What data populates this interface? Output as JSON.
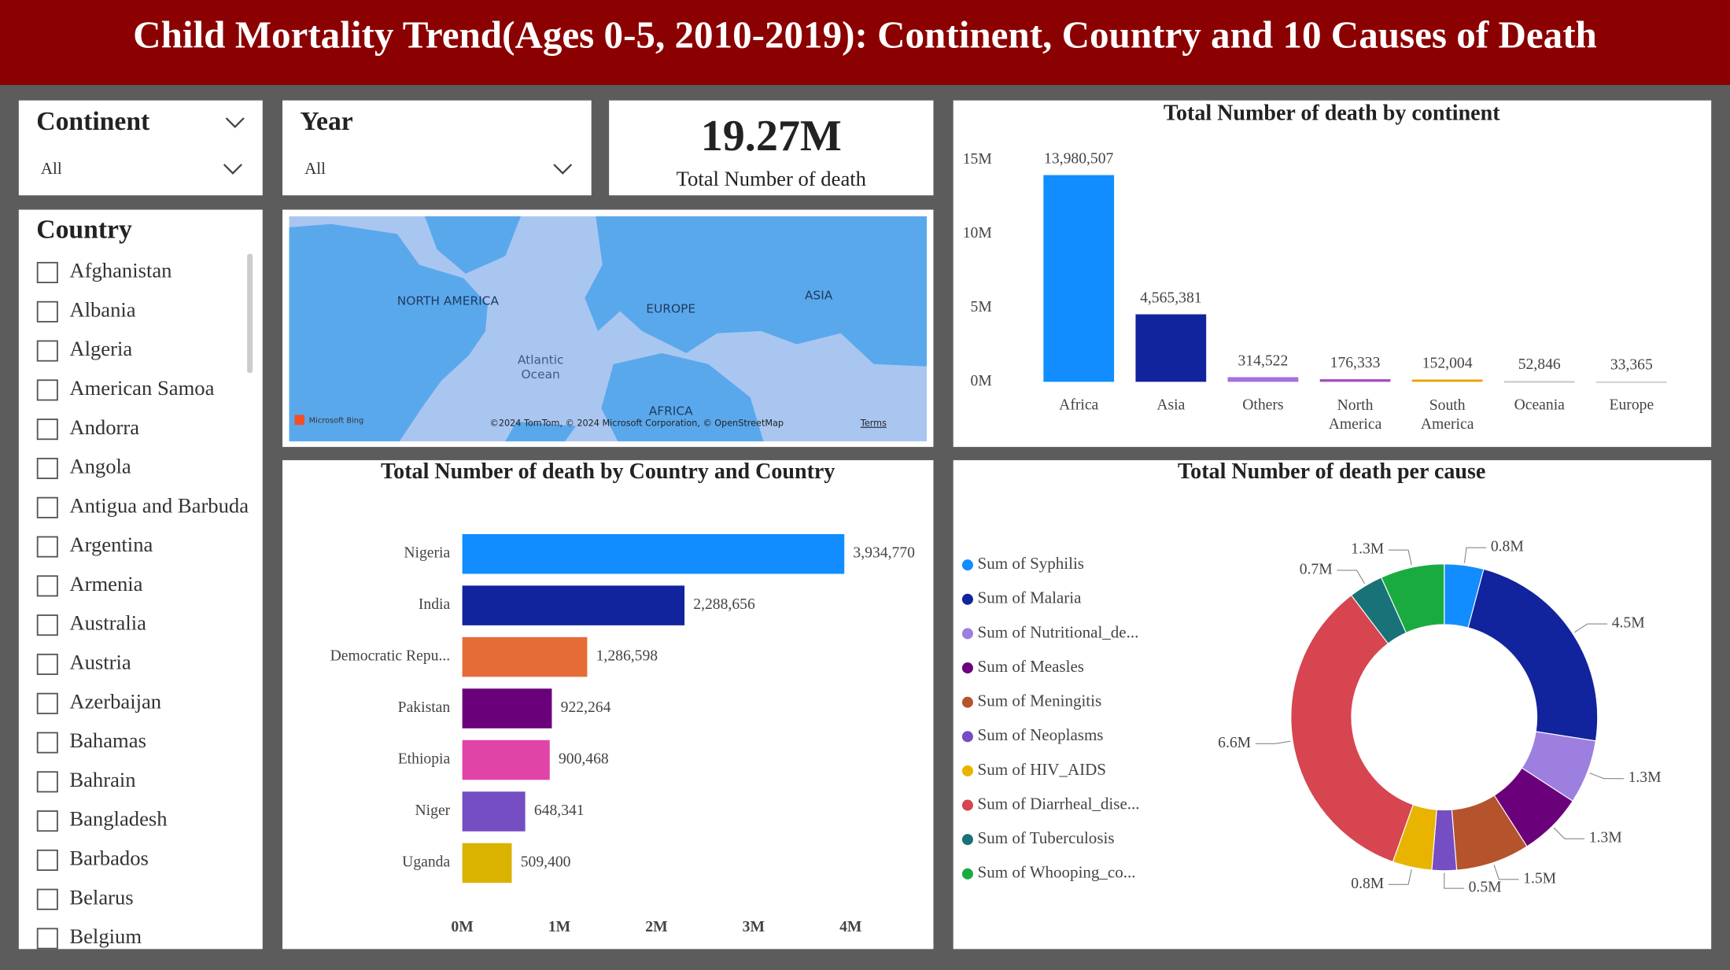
{
  "header": {
    "title": "Child Mortality Trend(Ages 0-5, 2010-2019): Continent, Country and 10 Causes of Death"
  },
  "slicers": {
    "continent": {
      "label": "Continent",
      "selected": "All"
    },
    "year": {
      "label": "Year",
      "selected": "All"
    },
    "country": {
      "label": "Country",
      "options": [
        "Afghanistan",
        "Albania",
        "Algeria",
        "American Samoa",
        "Andorra",
        "Angola",
        "Antigua and Barbuda",
        "Argentina",
        "Armenia",
        "Australia",
        "Austria",
        "Azerbaijan",
        "Bahamas",
        "Bahrain",
        "Bangladesh",
        "Barbados",
        "Belarus",
        "Belgium"
      ]
    }
  },
  "kpi": {
    "value": "19.27M",
    "caption": "Total Number of death"
  },
  "map": {
    "labels": [
      "NORTH AMERICA",
      "EUROPE",
      "ASIA",
      "Atlantic Ocean",
      "AFRICA"
    ],
    "logo": "Microsoft Bing",
    "attribution": "©2024 TomTom, © 2024 Microsoft Corporation, © OpenStreetMap",
    "terms": "Terms"
  },
  "chart_data": [
    {
      "type": "bar",
      "title": "Total Number of death by continent",
      "categories": [
        "Africa",
        "Asia",
        "Others",
        "North America",
        "South America",
        "Oceania",
        "Europe"
      ],
      "values": [
        13980507,
        4565381,
        314522,
        176333,
        152004,
        52846,
        33365
      ],
      "value_labels": [
        "13,980,507",
        "4,565,381",
        "314,522",
        "176,333",
        "152,004",
        "52,846",
        "33,365"
      ],
      "colors": [
        "#118dff",
        "#12239e",
        "#a66ee0",
        "#a54ec2",
        "#e8a400",
        "#c8c8c8",
        "#d0d0d0"
      ],
      "ylim": [
        0,
        15000000
      ],
      "yticks": [
        {
          "value": 0,
          "label": "0M"
        },
        {
          "value": 5000000,
          "label": "5M"
        },
        {
          "value": 10000000,
          "label": "10M"
        },
        {
          "value": 15000000,
          "label": "15M"
        }
      ]
    },
    {
      "type": "hbar",
      "title": "Total Number of death by Country and Country",
      "categories": [
        "Nigeria",
        "India",
        "Democratic Repu...",
        "Pakistan",
        "Ethiopia",
        "Niger",
        "Uganda"
      ],
      "values": [
        3934770,
        2288656,
        1286598,
        922264,
        900468,
        648341,
        509400
      ],
      "value_labels": [
        "3,934,770",
        "2,288,656",
        "1,286,598",
        "922,264",
        "900,468",
        "648,341",
        "509,400"
      ],
      "colors": [
        "#118dff",
        "#12239e",
        "#e66c37",
        "#6b007b",
        "#e044a7",
        "#744ec2",
        "#d9b300"
      ],
      "xlim": [
        0,
        4000000
      ],
      "xticks": [
        {
          "value": 0,
          "label": "0M"
        },
        {
          "value": 1000000,
          "label": "1M"
        },
        {
          "value": 2000000,
          "label": "2M"
        },
        {
          "value": 3000000,
          "label": "3M"
        },
        {
          "value": 4000000,
          "label": "4M"
        }
      ]
    },
    {
      "type": "donut",
      "title": "Total Number of death per cause",
      "categories": [
        "Sum of Syphilis",
        "Sum of Malaria",
        "Sum of Nutritional_de...",
        "Sum of Measles",
        "Sum of Meningitis",
        "Sum of Neoplasms",
        "Sum of HIV_AIDS",
        "Sum of Diarrheal_dise...",
        "Sum of Tuberculosis",
        "Sum of Whooping_co..."
      ],
      "values": [
        0.8,
        4.5,
        1.3,
        1.3,
        1.5,
        0.5,
        0.8,
        6.6,
        0.7,
        1.3
      ],
      "value_labels": [
        "0.8M",
        "4.5M",
        "1.3M",
        "1.3M",
        "1.5M",
        "0.5M",
        "0.8M",
        "6.6M",
        "0.7M",
        "1.3M"
      ],
      "colors": [
        "#118dff",
        "#12239e",
        "#9d7fe0",
        "#6b007b",
        "#b5542c",
        "#744ec2",
        "#e8b400",
        "#d64550",
        "#197278",
        "#1aab40"
      ]
    }
  ]
}
